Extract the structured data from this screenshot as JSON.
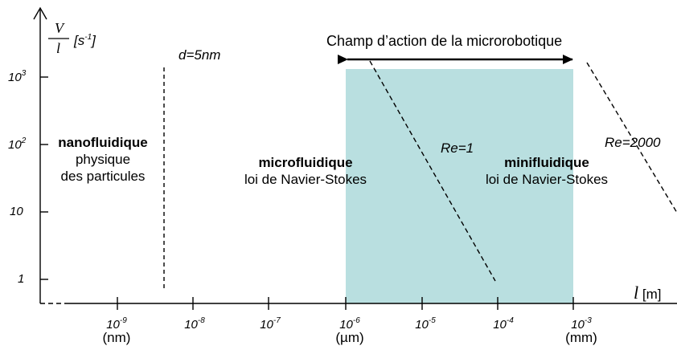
{
  "y_axis": {
    "label_numerator": "V",
    "label_denominator": "l",
    "label_unit_base": "[s",
    "label_unit_exp": "-1",
    "label_unit_end": "]",
    "ticks": [
      {
        "base": "10",
        "exp": "3"
      },
      {
        "base": "10",
        "exp": "2"
      },
      {
        "base": "10",
        "exp": ""
      },
      {
        "base": "1",
        "exp": ""
      }
    ]
  },
  "x_axis": {
    "label_var": "l",
    "label_unit": "[m]",
    "ticks": [
      {
        "base": "10",
        "exp": "-9",
        "sub": "(nm)"
      },
      {
        "base": "10",
        "exp": "-8",
        "sub": ""
      },
      {
        "base": "10",
        "exp": "-7",
        "sub": ""
      },
      {
        "base": "10",
        "exp": "-6",
        "sub": "(µm)"
      },
      {
        "base": "10",
        "exp": "-5",
        "sub": ""
      },
      {
        "base": "10",
        "exp": "-4",
        "sub": ""
      },
      {
        "base": "10",
        "exp": "-3",
        "sub": "(mm)"
      }
    ]
  },
  "annotations": {
    "d_label": "d=5nm",
    "champ_label": "Champ d’action de la microrobotique",
    "re1_label": "Re=1",
    "re2000_label": "Re=2000"
  },
  "regions": {
    "nano_title": "nanofluidique",
    "nano_line1": "physique",
    "nano_line2": "des particules",
    "micro_title": "microfluidique",
    "micro_line1": "loi de Navier-Stokes",
    "mini_title": "minifluidique",
    "mini_line1": "loi de Navier-Stokes"
  },
  "colors": {
    "highlight": "#b9dfe0",
    "axis": "#000000"
  }
}
